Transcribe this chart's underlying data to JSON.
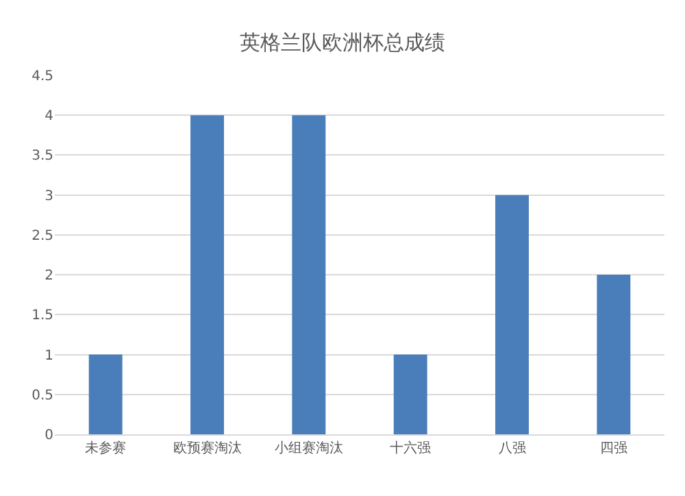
{
  "chart_data": {
    "type": "bar",
    "title": "英格兰队欧洲杯总成绩",
    "categories": [
      "未参赛",
      "欧预赛淘汰",
      "小组赛淘汰",
      "十六强",
      "八强",
      "四强"
    ],
    "values": [
      1,
      4,
      4,
      1,
      3,
      2
    ],
    "color": "#4a7ebb",
    "ylim": [
      0,
      4.5
    ],
    "yticks": [
      0,
      0.5,
      1,
      1.5,
      2,
      2.5,
      3,
      3.5,
      4,
      4.5
    ],
    "grid": "y"
  }
}
